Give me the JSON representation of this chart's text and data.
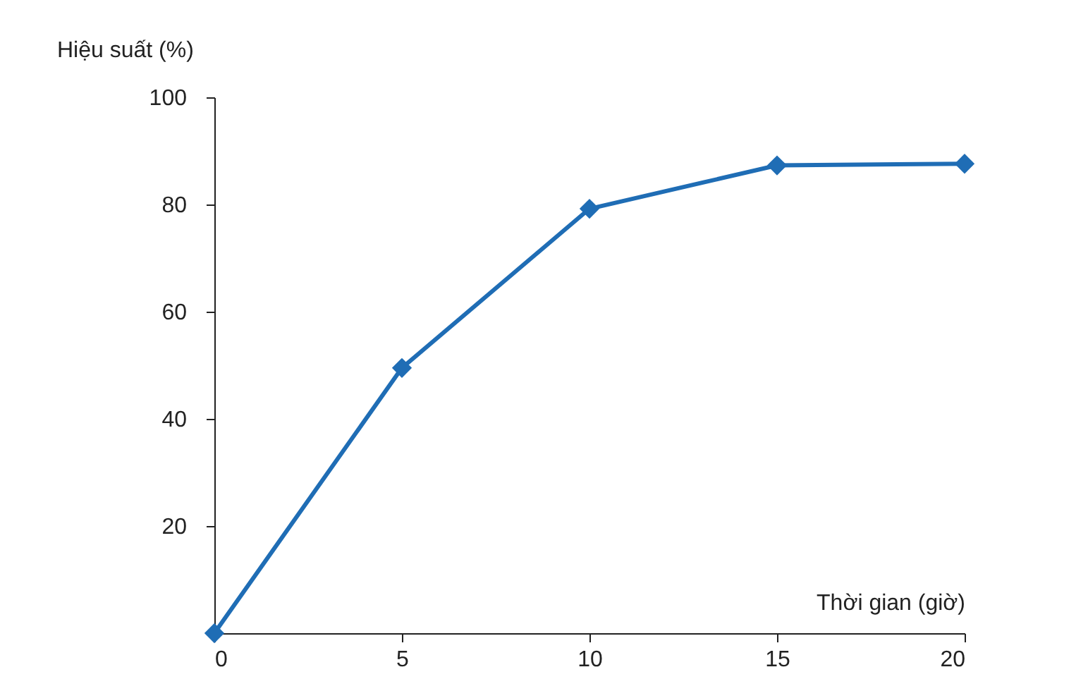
{
  "chart_data": {
    "type": "line",
    "xlabel": "Thời gian (giờ)",
    "ylabel": "Hiệu suất (%)",
    "x": [
      0,
      5,
      10,
      15,
      20
    ],
    "series": [
      {
        "color": "#1f6db5",
        "values": [
          0,
          49.5,
          79.2,
          87.3,
          87.6
        ]
      }
    ],
    "xlim": [
      0,
      20
    ],
    "xticks": [
      0,
      5,
      10,
      15,
      20
    ],
    "ylim": [
      0,
      100
    ],
    "yticks": [
      20,
      40,
      60,
      80,
      100
    ],
    "grid": false,
    "legend": false,
    "marker": "diamond",
    "line_style": "solid"
  }
}
